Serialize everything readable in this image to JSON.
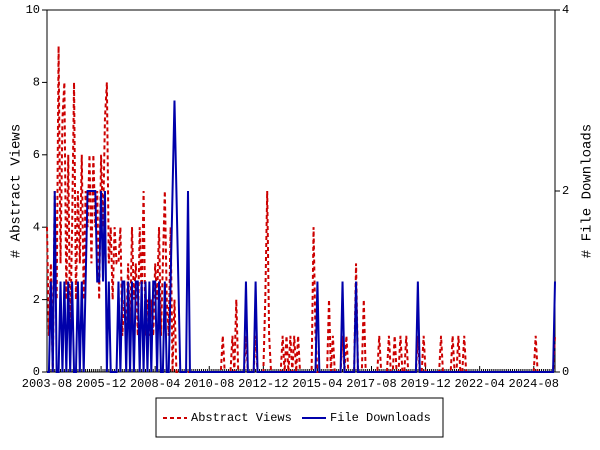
{
  "chart_data": {
    "type": "line",
    "ylabel": "# Abstract Views",
    "y2label": "# File Downloads",
    "ylim": [
      0,
      10
    ],
    "yticks": [
      0,
      2,
      4,
      6,
      8,
      10
    ],
    "y2lim": [
      0,
      4
    ],
    "y2ticks": [
      0,
      2,
      4
    ],
    "legend": "bottom",
    "categories": [
      "2003-08",
      null,
      null,
      null,
      null,
      null,
      null,
      null,
      null,
      null,
      null,
      null,
      null,
      null,
      null,
      null,
      null,
      null,
      null,
      null,
      null,
      null,
      null,
      null,
      null,
      null,
      null,
      null,
      "2005-12",
      null,
      null,
      null,
      null,
      null,
      null,
      null,
      null,
      null,
      null,
      null,
      null,
      null,
      null,
      null,
      null,
      null,
      null,
      null,
      null,
      null,
      null,
      null,
      null,
      null,
      null,
      null,
      "2008-04",
      null,
      null,
      null,
      null,
      null,
      null,
      null,
      null,
      null,
      null,
      null,
      null,
      null,
      null,
      null,
      null,
      null,
      null,
      null,
      null,
      null,
      null,
      null,
      null,
      null,
      null,
      null,
      "2010-08",
      null,
      null,
      null,
      null,
      null,
      null,
      null,
      null,
      null,
      null,
      null,
      null,
      null,
      null,
      null,
      null,
      null,
      null,
      null,
      null,
      null,
      null,
      null,
      null,
      null,
      null,
      null,
      "2012-12",
      null,
      null,
      null,
      null,
      null,
      null,
      null,
      null,
      null,
      null,
      null,
      null,
      null,
      null,
      null,
      null,
      null,
      null,
      null,
      null,
      null,
      null,
      null,
      null,
      null,
      null,
      null,
      "2015-04",
      null,
      null,
      null,
      null,
      null,
      null,
      null,
      null,
      null,
      null,
      null,
      null,
      null,
      null,
      null,
      null,
      null,
      null,
      null,
      null,
      null,
      null,
      null,
      null,
      null,
      null,
      null,
      "2017-08",
      null,
      null,
      null,
      null,
      null,
      null,
      null,
      null,
      null,
      null,
      null,
      null,
      null,
      null,
      null,
      null,
      null,
      null,
      null,
      null,
      null,
      null,
      null,
      null,
      null,
      null,
      null,
      "2019-12",
      null,
      null,
      null,
      null,
      null,
      null,
      null,
      null,
      null,
      null,
      null,
      null,
      null,
      null,
      null,
      null,
      null,
      null,
      null,
      null,
      null,
      null,
      null,
      null,
      null,
      null,
      null,
      "2022-04",
      null,
      null,
      null,
      null,
      null,
      null,
      null,
      null,
      null,
      null,
      null,
      null,
      null,
      null,
      null,
      null,
      null,
      null,
      null,
      null,
      null,
      null,
      null,
      null,
      null,
      null,
      null,
      "2024-08",
      null,
      null,
      null,
      null,
      null,
      null,
      null,
      null,
      null,
      null,
      null
    ],
    "series": [
      {
        "name": "Abstract Views",
        "color": "#cc0000",
        "values": [
          4,
          1,
          3,
          0,
          5,
          2,
          9,
          3,
          7,
          8,
          2,
          6,
          1,
          4,
          8,
          2,
          5,
          3,
          6,
          2,
          5,
          4,
          6,
          3,
          6,
          4,
          5,
          2,
          6,
          4,
          7,
          8,
          3,
          4,
          2,
          4,
          3,
          3,
          4,
          1,
          2,
          1,
          3,
          1,
          4,
          2,
          3,
          1,
          4,
          2,
          5,
          1,
          2,
          1,
          2,
          1,
          3,
          2,
          4,
          1,
          3,
          5,
          2,
          1,
          4,
          0,
          2,
          0,
          0,
          0,
          0,
          0,
          0,
          0,
          0,
          0,
          0,
          0,
          0,
          0,
          0,
          0,
          0,
          0,
          0,
          0,
          0,
          0,
          0,
          0,
          0,
          1,
          0,
          0,
          0,
          0,
          1,
          0,
          2,
          0,
          0,
          0,
          0,
          1,
          0,
          0,
          0,
          0,
          1,
          0,
          0,
          0,
          0,
          2,
          5,
          1,
          0,
          0,
          0,
          0,
          0,
          0,
          1,
          0,
          1,
          0,
          1,
          0,
          1,
          0,
          1,
          0,
          0,
          0,
          0,
          0,
          0,
          0,
          4,
          1,
          0,
          0,
          0,
          0,
          0,
          0,
          2,
          0,
          1,
          0,
          0,
          0,
          0,
          1,
          0,
          1,
          0,
          0,
          0,
          0,
          3,
          0,
          0,
          0,
          2,
          0,
          0,
          0,
          0,
          0,
          0,
          0,
          1,
          0,
          0,
          0,
          0,
          1,
          0,
          0,
          1,
          0,
          0,
          1,
          0,
          0,
          1,
          0,
          0,
          0,
          0,
          0,
          1,
          0,
          0,
          1,
          0,
          0,
          0,
          0,
          0,
          0,
          0,
          0,
          1,
          0,
          0,
          0,
          0,
          0,
          1,
          0,
          0,
          1,
          0,
          0,
          1,
          0,
          0,
          0,
          0,
          0,
          0,
          0,
          0,
          0,
          0,
          0,
          0,
          0,
          0,
          0,
          0,
          0,
          0,
          0,
          0,
          0,
          0,
          0,
          0,
          0,
          0,
          0,
          0,
          0,
          0,
          0,
          0,
          0,
          0,
          0,
          0,
          1,
          0,
          0,
          0,
          0,
          0,
          0,
          0,
          0,
          0,
          1
        ]
      },
      {
        "name": "File Downloads",
        "color": "#0000aa",
        "axis": "y2",
        "values": [
          0,
          0,
          1,
          0,
          2,
          0,
          0,
          1,
          0,
          1,
          0,
          1,
          0,
          1,
          0,
          0,
          1,
          0,
          1,
          0,
          1,
          2,
          2,
          2,
          2,
          2,
          1,
          1,
          2,
          1,
          2,
          0,
          1,
          0,
          0,
          0,
          0,
          1,
          0,
          1,
          1,
          0,
          1,
          0,
          1,
          0,
          1,
          1,
          0,
          1,
          0,
          1,
          0,
          1,
          0,
          1,
          1,
          0,
          1,
          0,
          0,
          1,
          0,
          0,
          1,
          2,
          3,
          2,
          1,
          0,
          0,
          0,
          0,
          2,
          0,
          0,
          0,
          0,
          0,
          0,
          0,
          0,
          0,
          0,
          0,
          0,
          0,
          0,
          0,
          0,
          0,
          0,
          0,
          0,
          0,
          0,
          0,
          0,
          0,
          0,
          0,
          0,
          0,
          1,
          0,
          0,
          0,
          0,
          1,
          0,
          0,
          0,
          0,
          0,
          0,
          0,
          0,
          0,
          0,
          0,
          0,
          0,
          0,
          0,
          0,
          0,
          0,
          0,
          0,
          0,
          0,
          0,
          0,
          0,
          0,
          0,
          0,
          0,
          0,
          0,
          1,
          0,
          0,
          0,
          0,
          0,
          0,
          0,
          0,
          0,
          0,
          0,
          0,
          1,
          0,
          0,
          0,
          0,
          0,
          0,
          1,
          0,
          0,
          0,
          0,
          0,
          0,
          0,
          0,
          0,
          0,
          0,
          0,
          0,
          0,
          0,
          0,
          0,
          0,
          0,
          0,
          0,
          0,
          0,
          0,
          0,
          0,
          0,
          0,
          0,
          0,
          0,
          1,
          0,
          0,
          0,
          0,
          0,
          0,
          0,
          0,
          0,
          0,
          0,
          0,
          0,
          0,
          0,
          0,
          0,
          0,
          0,
          0,
          0,
          0,
          0,
          0,
          0,
          0,
          0,
          0,
          0,
          0,
          0,
          0,
          0,
          0,
          0,
          0,
          0,
          0,
          0,
          0,
          0,
          0,
          0,
          0,
          0,
          0,
          0,
          0,
          0,
          0,
          0,
          0,
          0,
          0,
          0,
          0,
          0,
          0,
          0,
          0,
          0,
          0,
          0,
          0,
          0,
          0,
          0,
          0,
          0,
          0,
          1
        ]
      }
    ]
  }
}
